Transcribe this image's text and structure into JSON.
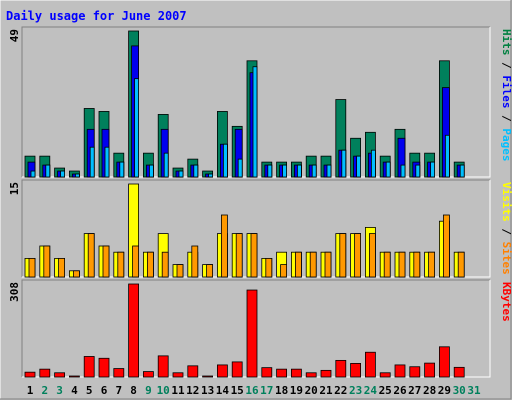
{
  "chart_data": {
    "type": "bar",
    "title": "Daily usage for June 2007",
    "categories": [
      "1",
      "2",
      "3",
      "4",
      "5",
      "6",
      "7",
      "8",
      "9",
      "10",
      "11",
      "12",
      "13",
      "14",
      "15",
      "16",
      "17",
      "18",
      "19",
      "20",
      "21",
      "22",
      "23",
      "24",
      "25",
      "26",
      "27",
      "28",
      "29",
      "30",
      "31"
    ],
    "weekend_days": [
      "2",
      "3",
      "9",
      "10",
      "16",
      "17",
      "23",
      "24",
      "30",
      "31"
    ],
    "panels": [
      {
        "name": "hits-files-pages",
        "ymax_label": "49",
        "ylim": [
          0,
          49
        ],
        "legend": [
          {
            "text": "Pages",
            "color": "#00bfff"
          },
          {
            "text": " / ",
            "color": "#000000"
          },
          {
            "text": "Files",
            "color": "#0000ff"
          },
          {
            "text": " / ",
            "color": "#000000"
          },
          {
            "text": "Hits",
            "color": "#008040"
          }
        ],
        "series": [
          {
            "name": "Hits",
            "color": "#00805c",
            "values": [
              7,
              7,
              3,
              2,
              23,
              22,
              8,
              49,
              8,
              21,
              3,
              6,
              2,
              22,
              17,
              39,
              5,
              5,
              5,
              7,
              7,
              26,
              13,
              15,
              7,
              16,
              8,
              8,
              39,
              5,
              0
            ]
          },
          {
            "name": "Files",
            "color": "#0000ee",
            "values": [
              5,
              4,
              2,
              1,
              16,
              16,
              5,
              44,
              4,
              16,
              2,
              4,
              1,
              11,
              16,
              35,
              4,
              4,
              4,
              4,
              4,
              9,
              7,
              8,
              5,
              13,
              5,
              5,
              30,
              4,
              0
            ]
          },
          {
            "name": "Pages",
            "color": "#00bfff",
            "values": [
              2,
              4,
              2,
              1,
              10,
              10,
              5,
              33,
              4,
              8,
              2,
              4,
              1,
              11,
              6,
              37,
              4,
              4,
              4,
              4,
              4,
              9,
              7,
              9,
              5,
              4,
              4,
              5,
              14,
              4,
              0
            ]
          }
        ]
      },
      {
        "name": "visits-sites",
        "ymax_label": "15",
        "ylim": [
          0,
          15
        ],
        "legend": [
          {
            "text": "Sites",
            "color": "#ff8000"
          },
          {
            "text": " / ",
            "color": "#000000"
          },
          {
            "text": "Visits",
            "color": "#ffff00"
          }
        ],
        "series": [
          {
            "name": "Visits",
            "color": "#ffff00",
            "values": [
              3,
              5,
              3,
              1,
              7,
              5,
              4,
              15,
              4,
              7,
              2,
              4,
              2,
              7,
              7,
              7,
              3,
              4,
              4,
              4,
              4,
              7,
              7,
              8,
              4,
              4,
              4,
              4,
              9,
              4,
              0
            ]
          },
          {
            "name": "Sites",
            "color": "#ff9900",
            "values": [
              3,
              5,
              3,
              1,
              7,
              5,
              4,
              5,
              4,
              4,
              2,
              5,
              2,
              10,
              7,
              7,
              3,
              2,
              4,
              4,
              4,
              7,
              7,
              7,
              4,
              4,
              4,
              4,
              10,
              4,
              0
            ]
          }
        ]
      },
      {
        "name": "kbytes",
        "ymax_label": "308",
        "ylim": [
          0,
          308
        ],
        "legend": [
          {
            "text": "KBytes",
            "color": "#ff0000"
          }
        ],
        "series": [
          {
            "name": "KBytes",
            "color": "#ff0000",
            "values": [
              16,
              26,
              14,
              2,
              68,
              62,
              28,
              308,
              18,
              70,
              14,
              37,
              2,
              40,
              50,
              288,
              31,
              26,
              26,
              14,
              22,
              55,
              45,
              82,
              14,
              40,
              34,
              46,
              100,
              32,
              0
            ]
          }
        ]
      }
    ]
  }
}
